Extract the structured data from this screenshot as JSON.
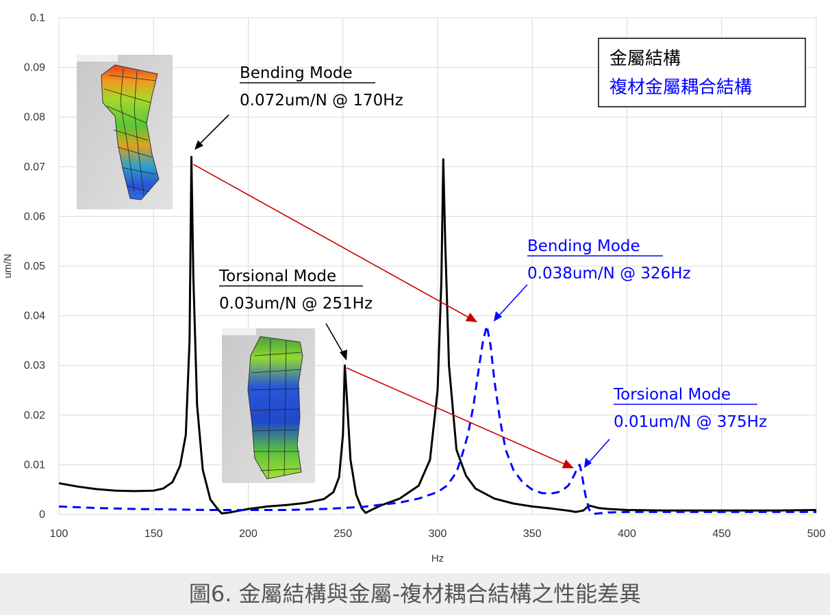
{
  "chart_data": {
    "type": "line",
    "title": "",
    "xlabel": "Hz",
    "ylabel": "um/N",
    "xlim": [
      100,
      500
    ],
    "ylim": [
      0,
      0.1
    ],
    "x_ticks": [
      "100",
      "150",
      "200",
      "250",
      "300",
      "350",
      "400",
      "450",
      "500"
    ],
    "y_ticks": [
      "0",
      "0.01",
      "0.02",
      "0.03",
      "0.04",
      "0.05",
      "0.06",
      "0.07",
      "0.08",
      "0.09",
      "0.1"
    ],
    "grid": "vertical and horizontal",
    "legend_position": "top-right",
    "series": [
      {
        "name": "金屬結構",
        "color": "#000000",
        "style": "solid",
        "points": [
          [
            100,
            0.0063
          ],
          [
            110,
            0.0056
          ],
          [
            120,
            0.0051
          ],
          [
            130,
            0.0048
          ],
          [
            140,
            0.0047
          ],
          [
            150,
            0.0048
          ],
          [
            155,
            0.0052
          ],
          [
            160,
            0.0065
          ],
          [
            164,
            0.0098
          ],
          [
            167,
            0.016
          ],
          [
            169,
            0.035
          ],
          [
            170,
            0.072
          ],
          [
            171,
            0.048
          ],
          [
            173,
            0.022
          ],
          [
            176,
            0.009
          ],
          [
            180,
            0.003
          ],
          [
            184,
            0.001
          ],
          [
            186,
            0.0002
          ],
          [
            190,
            0.0004
          ],
          [
            200,
            0.0011
          ],
          [
            210,
            0.0016
          ],
          [
            220,
            0.0019
          ],
          [
            230,
            0.0023
          ],
          [
            240,
            0.0031
          ],
          [
            245,
            0.0045
          ],
          [
            248,
            0.0075
          ],
          [
            250,
            0.016
          ],
          [
            251,
            0.03
          ],
          [
            252,
            0.024
          ],
          [
            254,
            0.011
          ],
          [
            257,
            0.004
          ],
          [
            260,
            0.0012
          ],
          [
            262,
            0.0003
          ],
          [
            265,
            0.0009
          ],
          [
            270,
            0.0018
          ],
          [
            280,
            0.0032
          ],
          [
            290,
            0.0058
          ],
          [
            296,
            0.011
          ],
          [
            300,
            0.025
          ],
          [
            302,
            0.047
          ],
          [
            303,
            0.0715
          ],
          [
            304,
            0.055
          ],
          [
            306,
            0.03
          ],
          [
            310,
            0.013
          ],
          [
            315,
            0.0078
          ],
          [
            320,
            0.0052
          ],
          [
            330,
            0.0032
          ],
          [
            340,
            0.0022
          ],
          [
            350,
            0.0016
          ],
          [
            360,
            0.0012
          ],
          [
            370,
            0.0007
          ],
          [
            373,
            0.0005
          ],
          [
            377,
            0.0008
          ],
          [
            380,
            0.0018
          ],
          [
            385,
            0.0013
          ],
          [
            390,
            0.0011
          ],
          [
            400,
            0.0009
          ],
          [
            420,
            0.0008
          ],
          [
            450,
            0.0008
          ],
          [
            480,
            0.0008
          ],
          [
            500,
            0.0009
          ]
        ]
      },
      {
        "name": "複材金屬耦合結構",
        "color": "#0000ff",
        "style": "dashed",
        "points": [
          [
            100,
            0.0016
          ],
          [
            120,
            0.0013
          ],
          [
            140,
            0.0011
          ],
          [
            160,
            0.001
          ],
          [
            180,
            0.0009
          ],
          [
            200,
            0.0009
          ],
          [
            220,
            0.0009
          ],
          [
            240,
            0.0011
          ],
          [
            260,
            0.0015
          ],
          [
            280,
            0.0024
          ],
          [
            290,
            0.0032
          ],
          [
            300,
            0.0045
          ],
          [
            305,
            0.0058
          ],
          [
            310,
            0.0085
          ],
          [
            313,
            0.012
          ],
          [
            316,
            0.016
          ],
          [
            319,
            0.022
          ],
          [
            322,
            0.03
          ],
          [
            324,
            0.035
          ],
          [
            326,
            0.038
          ],
          [
            328,
            0.034
          ],
          [
            330,
            0.027
          ],
          [
            333,
            0.019
          ],
          [
            336,
            0.013
          ],
          [
            340,
            0.009
          ],
          [
            345,
            0.0064
          ],
          [
            350,
            0.005
          ],
          [
            355,
            0.0043
          ],
          [
            360,
            0.0042
          ],
          [
            365,
            0.0046
          ],
          [
            369,
            0.0058
          ],
          [
            372,
            0.0078
          ],
          [
            374,
            0.0095
          ],
          [
            375,
            0.01
          ],
          [
            376,
            0.0085
          ],
          [
            378,
            0.004
          ],
          [
            380,
            0.001
          ],
          [
            382,
            0.0001
          ],
          [
            385,
            0.0002
          ],
          [
            390,
            0.0004
          ],
          [
            400,
            0.0005
          ],
          [
            450,
            0.0005
          ],
          [
            500,
            0.0005
          ]
        ]
      }
    ],
    "annotations": [
      {
        "id": "metal-bending",
        "title": "Bending Mode",
        "value": "0.072um/N @ 170Hz",
        "color": "#000000"
      },
      {
        "id": "metal-torsional",
        "title": "Torsional Mode",
        "value": "0.03um/N @ 251Hz",
        "color": "#000000"
      },
      {
        "id": "composite-bending",
        "title": "Bending Mode",
        "value": "0.038um/N @ 326Hz",
        "color": "#0000ff"
      },
      {
        "id": "composite-torsional",
        "title": "Torsional Mode",
        "value": "0.01um/N @ 375Hz",
        "color": "#0000ff"
      }
    ],
    "arrows": [
      {
        "from": [
          171,
          0.0705
        ],
        "to": [
          321,
          0.0387
        ],
        "color": "#cc0000"
      },
      {
        "from": [
          252,
          0.0295
        ],
        "to": [
          372,
          0.0093
        ],
        "color": "#cc0000"
      }
    ]
  },
  "caption": "圖6. 金屬結構與金屬-複材耦合結構之性能差異",
  "colors": {
    "metal": "#000000",
    "composite": "#0000ff",
    "arrow": "#cc0000",
    "grid": "#d9d9d9"
  }
}
